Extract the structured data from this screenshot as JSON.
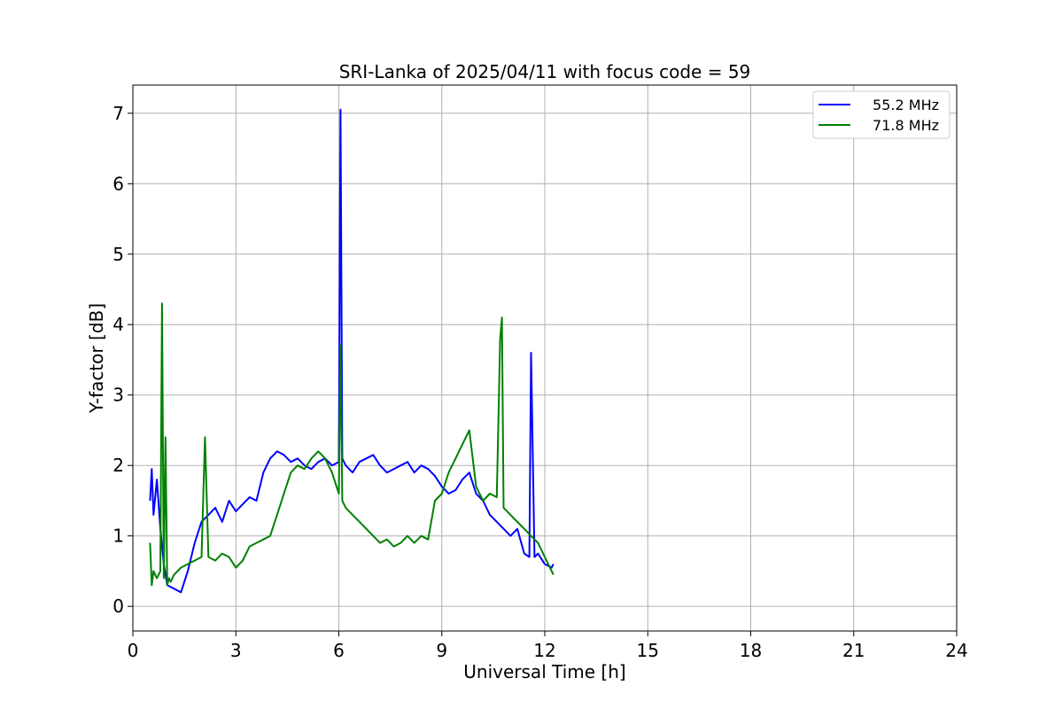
{
  "chart_data": {
    "type": "line",
    "title": "SRI-Lanka of 2025/04/11 with focus code = 59",
    "xlabel": "Universal Time [h]",
    "ylabel": "Y-factor [dB]",
    "xlim": [
      0,
      24
    ],
    "ylim": [
      -0.35,
      7.4
    ],
    "xticks": [
      0,
      3,
      6,
      9,
      12,
      15,
      18,
      21,
      24
    ],
    "yticks": [
      0,
      1,
      2,
      3,
      4,
      5,
      6,
      7
    ],
    "grid": true,
    "legend_position": "top-right",
    "series": [
      {
        "name": "55.2 MHz",
        "color": "#0000ff",
        "x": [
          0.5,
          0.55,
          0.6,
          0.7,
          0.8,
          0.9,
          1.0,
          1.2,
          1.4,
          1.6,
          1.8,
          2.0,
          2.2,
          2.4,
          2.6,
          2.8,
          3.0,
          3.2,
          3.4,
          3.6,
          3.8,
          4.0,
          4.2,
          4.4,
          4.6,
          4.8,
          5.0,
          5.2,
          5.4,
          5.6,
          5.8,
          6.0,
          6.05,
          6.1,
          6.2,
          6.4,
          6.6,
          6.8,
          7.0,
          7.2,
          7.4,
          7.6,
          7.8,
          8.0,
          8.2,
          8.4,
          8.6,
          8.8,
          9.0,
          9.2,
          9.4,
          9.6,
          9.8,
          10.0,
          10.2,
          10.4,
          10.6,
          10.8,
          11.0,
          11.2,
          11.4,
          11.55,
          11.6,
          11.7,
          11.8,
          12.0,
          12.2,
          12.25
        ],
        "y": [
          1.5,
          1.95,
          1.3,
          1.8,
          1.1,
          0.6,
          0.3,
          0.25,
          0.2,
          0.5,
          0.9,
          1.2,
          1.3,
          1.4,
          1.2,
          1.5,
          1.35,
          1.45,
          1.55,
          1.5,
          1.9,
          2.1,
          2.2,
          2.15,
          2.05,
          2.1,
          2.0,
          1.95,
          2.05,
          2.1,
          2.0,
          2.05,
          7.05,
          2.1,
          2.0,
          1.9,
          2.05,
          2.1,
          2.15,
          2.0,
          1.9,
          1.95,
          2.0,
          2.05,
          1.9,
          2.0,
          1.95,
          1.85,
          1.7,
          1.6,
          1.65,
          1.8,
          1.9,
          1.6,
          1.5,
          1.3,
          1.2,
          1.1,
          1.0,
          1.1,
          0.75,
          0.7,
          3.6,
          0.7,
          0.75,
          0.6,
          0.55,
          0.6
        ]
      },
      {
        "name": "71.8 MHz",
        "color": "#008000",
        "x": [
          0.5,
          0.55,
          0.6,
          0.7,
          0.8,
          0.85,
          0.9,
          0.95,
          1.0,
          1.05,
          1.1,
          1.2,
          1.4,
          1.6,
          1.8,
          2.0,
          2.1,
          2.2,
          2.4,
          2.6,
          2.8,
          3.0,
          3.2,
          3.4,
          3.6,
          3.8,
          4.0,
          4.2,
          4.4,
          4.6,
          4.8,
          5.0,
          5.2,
          5.4,
          5.6,
          5.8,
          6.0,
          6.05,
          6.1,
          6.2,
          6.4,
          6.6,
          6.8,
          7.0,
          7.2,
          7.4,
          7.6,
          7.8,
          8.0,
          8.2,
          8.4,
          8.6,
          8.8,
          9.0,
          9.2,
          9.4,
          9.6,
          9.8,
          10.0,
          10.2,
          10.4,
          10.6,
          10.7,
          10.75,
          10.8,
          11.0,
          11.2,
          11.4,
          11.6,
          11.8,
          12.0,
          12.2,
          12.25
        ],
        "y": [
          0.9,
          0.3,
          0.5,
          0.4,
          0.5,
          4.3,
          0.4,
          2.4,
          0.3,
          0.4,
          0.35,
          0.45,
          0.55,
          0.6,
          0.65,
          0.7,
          2.4,
          0.7,
          0.65,
          0.75,
          0.7,
          0.55,
          0.65,
          0.85,
          0.9,
          0.95,
          1.0,
          1.3,
          1.6,
          1.9,
          2.0,
          1.95,
          2.1,
          2.2,
          2.1,
          1.9,
          1.6,
          3.7,
          1.5,
          1.4,
          1.3,
          1.2,
          1.1,
          1.0,
          0.9,
          0.95,
          0.85,
          0.9,
          1.0,
          0.9,
          1.0,
          0.95,
          1.5,
          1.6,
          1.9,
          2.1,
          2.3,
          2.5,
          1.7,
          1.5,
          1.6,
          1.55,
          3.8,
          4.1,
          1.4,
          1.3,
          1.2,
          1.1,
          1.0,
          0.9,
          0.7,
          0.5,
          0.45
        ]
      }
    ]
  }
}
